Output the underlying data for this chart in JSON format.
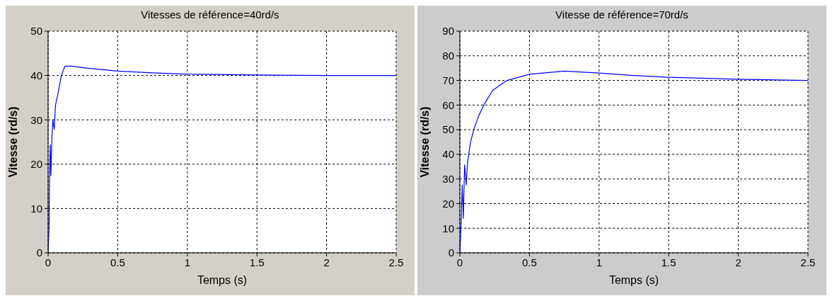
{
  "chart_data": [
    {
      "type": "line",
      "title": "Vitesses de référence=40rd/s",
      "xlabel": "Temps (s)",
      "ylabel": "Vitesse (rd/s)",
      "xlim": [
        0,
        2.5
      ],
      "xticks": [
        0,
        0.5,
        1,
        1.5,
        2,
        2.5
      ],
      "ylim": [
        0,
        50
      ],
      "yticks": [
        0,
        10,
        20,
        30,
        40,
        50
      ],
      "grid": true,
      "legend": false,
      "x": [
        0,
        0.007,
        0.01,
        0.015,
        0.02,
        0.027,
        0.034,
        0.044,
        0.053,
        0.07,
        0.095,
        0.121,
        0.163,
        0.3,
        0.5,
        0.75,
        1,
        1.5,
        2,
        2.5
      ],
      "series": [
        {
          "color": "#0000ff",
          "values": [
            0,
            5.8,
            16,
            24.4,
            17.4,
            25.8,
            30,
            27.8,
            33.3,
            35.8,
            40,
            42.1,
            42.1,
            41.6,
            41,
            40.6,
            40.3,
            40.1,
            40,
            40
          ]
        }
      ]
    },
    {
      "type": "line",
      "title": "Vitesse de référence=70rd/s",
      "xlabel": "Temps (s)",
      "ylabel": "Vitesse (rd/s)",
      "xlim": [
        0,
        2.5
      ],
      "xticks": [
        0,
        0.5,
        1,
        1.5,
        2,
        2.5
      ],
      "ylim": [
        0,
        90
      ],
      "yticks": [
        0,
        10,
        20,
        30,
        40,
        50,
        60,
        70,
        80,
        90
      ],
      "grid": true,
      "legend": false,
      "x": [
        0,
        0.0085,
        0.017,
        0.025,
        0.034,
        0.046,
        0.054,
        0.076,
        0.101,
        0.135,
        0.177,
        0.236,
        0.338,
        0.5,
        0.75,
        1,
        1.25,
        1.5,
        2,
        2.5
      ],
      "series": [
        {
          "color": "#0000ff",
          "values": [
            0,
            10.5,
            27.6,
            14,
            35.7,
            27.6,
            36,
            44.8,
            50.2,
            55.6,
            60.5,
            66,
            70,
            72.5,
            73.8,
            73,
            72,
            71.3,
            70.5,
            70
          ]
        }
      ]
    }
  ]
}
